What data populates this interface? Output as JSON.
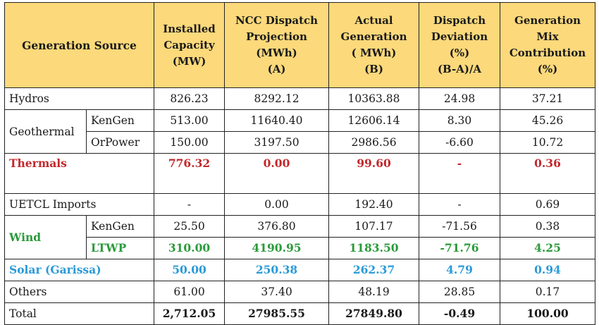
{
  "headers": {
    "source": "Generation Source",
    "capacity": [
      "Installed",
      "Capacity",
      "(MW)"
    ],
    "ncc": [
      "NCC Dispatch",
      "Projection",
      "(MWh)",
      "(A)"
    ],
    "actual": [
      "Actual",
      "Generation",
      "( MWh)",
      "(B)"
    ],
    "deviation": [
      "Dispatch",
      "Deviation",
      "(%)",
      "(B-A)/A"
    ],
    "mix": [
      "Generation",
      "Mix",
      "Contribution",
      "(%)"
    ]
  },
  "rows": {
    "hydros": {
      "label": "Hydros",
      "capacity": "826.23",
      "ncc": "8292.12",
      "actual": "10363.88",
      "deviation": "24.98",
      "mix": "37.21"
    },
    "geothermal": {
      "label": "Geothermal",
      "kengen": {
        "label": "KenGen",
        "capacity": "513.00",
        "ncc": "11640.40",
        "actual": "12606.14",
        "deviation": "8.30",
        "mix": "45.26"
      },
      "orpower": {
        "label": "OrPower",
        "capacity": "150.00",
        "ncc": "3197.50",
        "actual": "2986.56",
        "deviation": "-6.60",
        "mix": "10.72"
      }
    },
    "thermals": {
      "label": "Thermals",
      "capacity": "776.32",
      "ncc": "0.00",
      "actual": "99.60",
      "deviation": "-",
      "mix": "0.36"
    },
    "uetcl": {
      "label": "UETCL Imports",
      "capacity": "-",
      "ncc": "0.00",
      "actual": "192.40",
      "deviation": "-",
      "mix": "0.69"
    },
    "wind": {
      "label": "Wind",
      "kengen": {
        "label": "KenGen",
        "capacity": "25.50",
        "ncc": "376.80",
        "actual": "107.17",
        "deviation": "-71.56",
        "mix": "0.38"
      },
      "ltwp": {
        "label": "LTWP",
        "capacity": "310.00",
        "ncc": "4190.95",
        "actual": "1183.50",
        "deviation": "-71.76",
        "mix": "4.25"
      }
    },
    "solar": {
      "label": "Solar (Garissa)",
      "capacity": "50.00",
      "ncc": "250.38",
      "actual": "262.37",
      "deviation": "4.79",
      "mix": "0.94"
    },
    "others": {
      "label": "Others",
      "capacity": "61.00",
      "ncc": "37.40",
      "actual": "48.19",
      "deviation": "28.85",
      "mix": "0.17"
    },
    "total": {
      "label": "Total",
      "capacity": "2,712.05",
      "ncc": "27985.55",
      "actual": "27849.80",
      "deviation": "-0.49",
      "mix": "100.00"
    }
  },
  "colors": {
    "header_bg": "#fcd97a",
    "thermals": "#c3282b",
    "wind": "#2a9a3a",
    "solar": "#2a9ad8"
  }
}
